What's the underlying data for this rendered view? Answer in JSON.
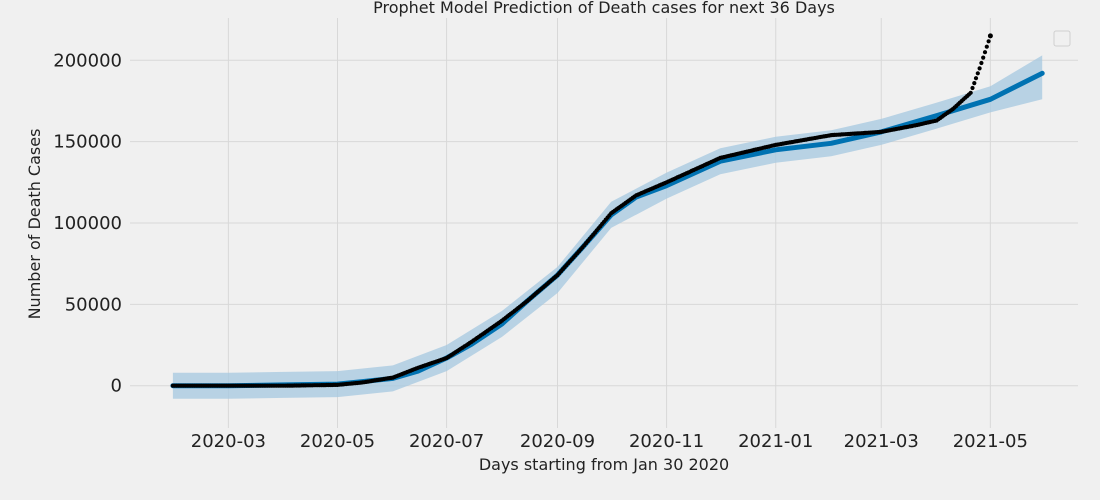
{
  "chart_data": {
    "type": "line",
    "title": "Prophet Model Prediction of Death cases for next 36 Days",
    "xlabel": "Days starting from Jan 30 2020",
    "ylabel": "Number of Death Cases",
    "x_range": [
      "2020-01-06",
      "2021-06-19"
    ],
    "ylim": [
      -26000,
      226000
    ],
    "x_ticks": [
      "2020-03-01",
      "2020-05-01",
      "2020-07-01",
      "2020-09-01",
      "2020-11-01",
      "2021-01-01",
      "2021-03-01",
      "2021-05-01"
    ],
    "x_tick_labels": [
      "2020-03",
      "2020-05",
      "2020-07",
      "2020-09",
      "2020-11",
      "2021-01",
      "2021-03",
      "2021-05"
    ],
    "y_ticks": [
      0,
      50000,
      100000,
      150000,
      200000
    ],
    "y_tick_labels": [
      "0",
      "50000",
      "100000",
      "150000",
      "200000"
    ],
    "grid": true,
    "legend": "top-right, empty",
    "colors": {
      "background": "#f0f0f0",
      "grid": "#d8d8d8",
      "forecast": "#0072b2",
      "interval": "#a6c8e0",
      "actual": "#000000"
    },
    "series": [
      {
        "type": "band",
        "x": [
          "2020-01-30",
          "2020-03-01",
          "2020-04-01",
          "2020-05-01",
          "2020-06-01",
          "2020-07-01",
          "2020-08-01",
          "2020-09-01",
          "2020-10-01",
          "2020-11-01",
          "2020-12-01",
          "2021-01-01",
          "2021-02-01",
          "2021-03-01",
          "2021-04-01",
          "2021-05-01",
          "2021-05-30"
        ],
        "lower": [
          -8000,
          -8000,
          -7500,
          -7000,
          -3500,
          9000,
          30000,
          57000,
          97000,
          115000,
          130000,
          137000,
          141000,
          148000,
          158000,
          168000,
          176000
        ],
        "upper": [
          8000,
          8000,
          8500,
          9000,
          12500,
          25000,
          46000,
          73000,
          113000,
          131000,
          146000,
          153000,
          157000,
          164000,
          174000,
          184000,
          203000
        ]
      },
      {
        "type": "line",
        "x": [
          "2020-01-30",
          "2020-03-01",
          "2020-04-01",
          "2020-05-01",
          "2020-05-15",
          "2020-06-01",
          "2020-06-15",
          "2020-07-01",
          "2020-07-15",
          "2020-08-01",
          "2020-08-15",
          "2020-09-01",
          "2020-09-15",
          "2020-10-01",
          "2020-10-15",
          "2020-11-01",
          "2020-12-01",
          "2021-01-01",
          "2021-02-01",
          "2021-03-01",
          "2021-04-01",
          "2021-05-01",
          "2021-05-30"
        ],
        "y": [
          0,
          0,
          500,
          1000,
          2500,
          4500,
          9000,
          17000,
          25500,
          38000,
          52000,
          68000,
          85000,
          105000,
          116000,
          123000,
          138000,
          145000,
          149000,
          156000,
          166000,
          176000,
          192000
        ]
      },
      {
        "type": "scatter",
        "x": [
          "2020-01-30",
          "2020-03-01",
          "2020-04-01",
          "2020-05-01",
          "2020-05-15",
          "2020-06-01",
          "2020-06-15",
          "2020-07-01",
          "2020-07-15",
          "2020-08-01",
          "2020-08-15",
          "2020-09-01",
          "2020-09-15",
          "2020-10-01",
          "2020-10-15",
          "2020-11-01",
          "2020-12-01",
          "2021-01-01",
          "2021-02-01",
          "2021-03-01",
          "2021-03-20",
          "2021-04-01",
          "2021-04-10",
          "2021-04-20",
          "2021-04-25",
          "2021-05-01"
        ],
        "y": [
          0,
          0,
          0,
          500,
          2000,
          5000,
          11000,
          17000,
          27000,
          40000,
          52000,
          68000,
          85000,
          106000,
          117000,
          125000,
          140000,
          148000,
          154000,
          156000,
          160000,
          163000,
          170000,
          180000,
          195000,
          215000
        ]
      }
    ]
  }
}
